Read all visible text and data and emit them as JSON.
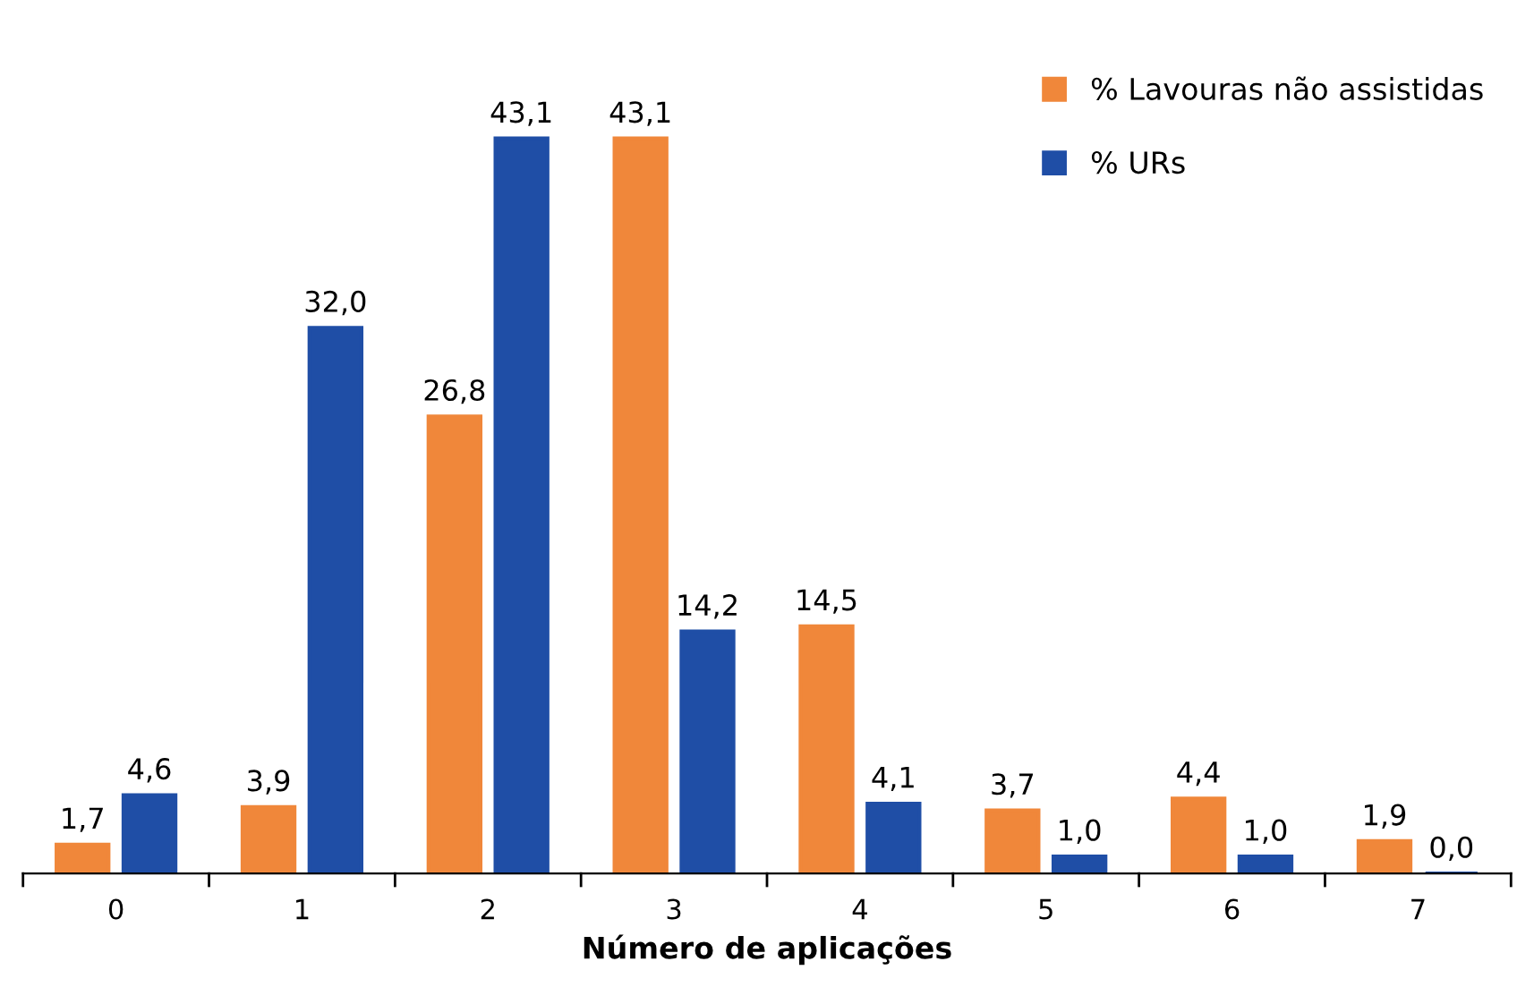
{
  "chart_data": {
    "type": "bar",
    "xlabel": "Número de aplicações",
    "categories": [
      "0",
      "1",
      "2",
      "3",
      "4",
      "5",
      "6",
      "7"
    ],
    "series": [
      {
        "name": "% Lavouras não assistidas",
        "color": "#f0873a",
        "values": [
          1.7,
          3.9,
          26.8,
          43.1,
          14.5,
          3.7,
          4.4,
          1.9
        ],
        "value_labels": [
          "1,7",
          "3,9",
          "26,8",
          "43,1",
          "14,5",
          "3,7",
          "4,4",
          "1,9"
        ]
      },
      {
        "name": "% URs",
        "color": "#1f4ea6",
        "values": [
          4.6,
          32.0,
          43.1,
          14.2,
          4.1,
          1.0,
          1.0,
          0.0
        ],
        "value_labels": [
          "4,6",
          "32,0",
          "43,1",
          "14,2",
          "4,1",
          "1,0",
          "1,0",
          "0,0"
        ]
      }
    ],
    "legend": "top right",
    "grid": false
  }
}
